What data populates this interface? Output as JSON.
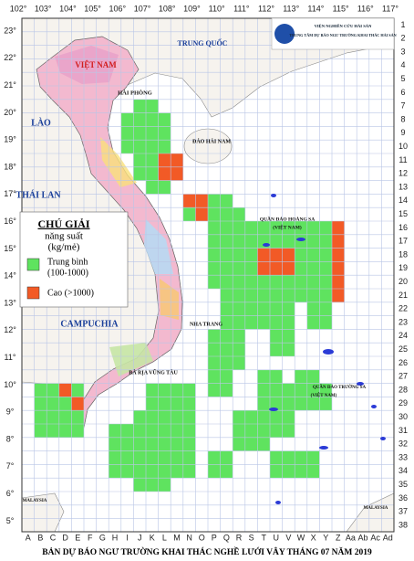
{
  "header": {
    "institute": "VIỆN NGHIÊN CỨU HẢI SẢN",
    "center": "TRUNG TÂM DỰ BÁO NGƯ TRƯỜNG KHAI THÁC HẢI SẢN"
  },
  "title": "BẢN DỰ BÁO NGƯ TRƯỜNG KHAI THÁC NGHỀ LƯỚI VÂY THÁNG 07 NĂM 2019",
  "legend": {
    "heading": "CHÚ GIẢI",
    "subheading": "năng suất",
    "unit": "(kg/mẻ)",
    "items": [
      {
        "label": "Trung bình",
        "range": "(100-1000)",
        "color": "#5fe35f"
      },
      {
        "label": "Cao (>1000)",
        "color": "#f25a26"
      }
    ]
  },
  "axes": {
    "longitudes": [
      "102°",
      "103°",
      "104°",
      "105°",
      "106°",
      "107°",
      "108°",
      "109°",
      "110°",
      "111°",
      "112°",
      "113°",
      "114°",
      "115°",
      "116°",
      "117°"
    ],
    "latitudes": [
      "23°",
      "22°",
      "21°",
      "20°",
      "19°",
      "18°",
      "17°",
      "16°",
      "15°",
      "14°",
      "13°",
      "12°",
      "11°",
      "10°",
      "9°",
      "8°",
      "7°",
      "6°",
      "5°"
    ],
    "rows": [
      1,
      2,
      3,
      4,
      5,
      6,
      7,
      8,
      9,
      10,
      11,
      12,
      13,
      14,
      15,
      16,
      17,
      18,
      19,
      20,
      21,
      22,
      23,
      24,
      25,
      26,
      27,
      28,
      29,
      30,
      31,
      32,
      33,
      34,
      35,
      36,
      37,
      38
    ],
    "columns": [
      "A",
      "B",
      "C",
      "D",
      "E",
      "F",
      "G",
      "H",
      "I",
      "J",
      "K",
      "L",
      "M",
      "N",
      "O",
      "P",
      "Q",
      "R",
      "S",
      "T",
      "U",
      "V",
      "W",
      "X",
      "Y",
      "Z",
      "Aa",
      "Ab",
      "Ac",
      "Ad"
    ]
  },
  "places": [
    "TRUNG QUỐC",
    "VIỆT NAM",
    "LÀO",
    "THÁI LAN",
    "CAMPUCHIA",
    "HẢI PHÒNG",
    "ĐẢO HẢI NAM",
    "QUẦN ĐẢO HOÀNG SA",
    "(VIỆT NAM)",
    "QUẦN ĐẢO TRƯỜNG SA",
    "(VIỆT NAM)",
    "NHA TRANG",
    "BÀ RỊA VŨNG TÀU",
    "MALAYSIA",
    "MALAYSIA"
  ]
}
